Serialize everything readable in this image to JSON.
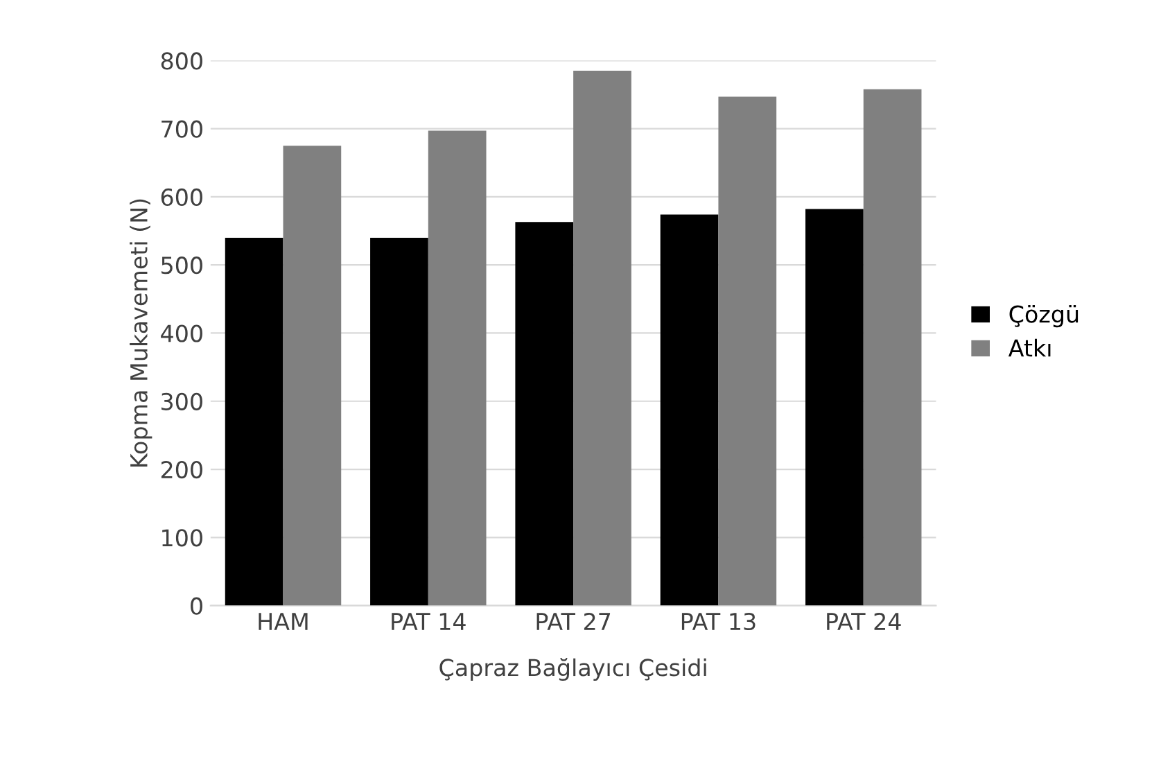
{
  "chart_data": {
    "type": "bar",
    "xlabel": "Çapraz Bağlayıcı Çesidi",
    "ylabel": "Kopma Mukavemeti (N)",
    "categories": [
      "HAM",
      "PAT 14",
      "PAT 27",
      "PAT 13",
      "PAT 24"
    ],
    "series": [
      {
        "name": "Çözgü",
        "color": "#000000",
        "values": [
          540,
          540,
          563,
          574,
          582
        ]
      },
      {
        "name": "Atkı",
        "color": "#808080",
        "values": [
          675,
          697,
          785,
          747,
          758
        ]
      }
    ],
    "ylim": [
      0,
      800
    ],
    "yticks": [
      0,
      100,
      200,
      300,
      400,
      500,
      600,
      700,
      800
    ],
    "grid": "y",
    "legend": "right"
  }
}
